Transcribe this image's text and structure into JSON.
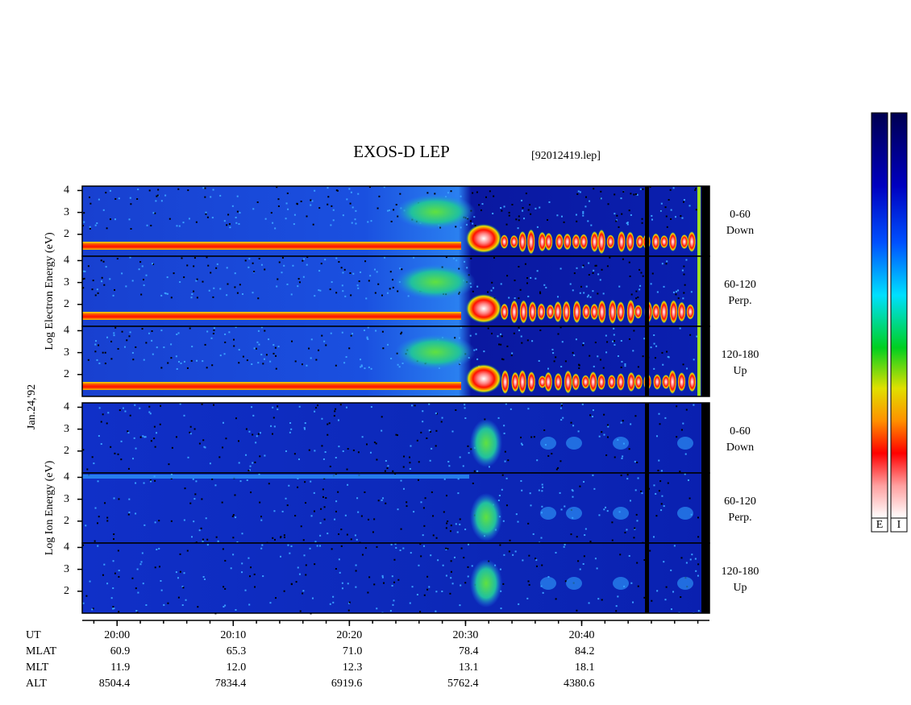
{
  "chart_data": {
    "type": "spectrogram",
    "title": "EXOS-D LEP",
    "file": "[92012419.lep]",
    "date": "Jan.24,'92",
    "xlim": [
      "19:57",
      "20:51"
    ],
    "xticks": [
      "20:00",
      "20:10",
      "20:20",
      "20:30",
      "20:40"
    ],
    "xlabel": "UT",
    "ylim": [
      1,
      4.2
    ],
    "yticks": [
      2,
      3,
      4
    ],
    "groups": [
      {
        "ylabel": "Log  Electron  Energy (eV)",
        "panels": [
          {
            "angle": "0-60",
            "direction": "Down"
          },
          {
            "angle": "60-120",
            "direction": "Perp."
          },
          {
            "angle": "120-180",
            "direction": "Up"
          }
        ]
      },
      {
        "ylabel": "Log  Ion  Energy (eV)",
        "panels": [
          {
            "angle": "0-60",
            "direction": "Down"
          },
          {
            "angle": "60-120",
            "direction": "Perp."
          },
          {
            "angle": "120-180",
            "direction": "Up"
          }
        ]
      }
    ],
    "orbit": [
      {
        "name": "MLAT",
        "values": [
          "60.9",
          "65.3",
          "71.0",
          "78.4",
          "84.2"
        ]
      },
      {
        "name": "MLT",
        "values": [
          "11.9",
          "12.0",
          "12.3",
          "13.1",
          "18.1"
        ]
      },
      {
        "name": "ALT",
        "values": [
          "8504.4",
          "7834.4",
          "6919.6",
          "5762.4",
          "4380.6"
        ]
      }
    ],
    "colorbars": [
      "E",
      "I"
    ]
  }
}
